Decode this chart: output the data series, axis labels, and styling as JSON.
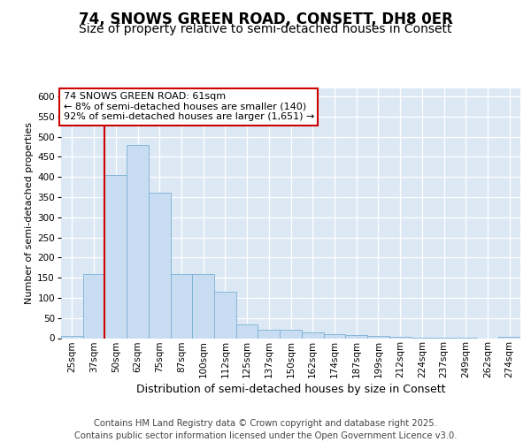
{
  "title": "74, SNOWS GREEN ROAD, CONSETT, DH8 0ER",
  "subtitle": "Size of property relative to semi-detached houses in Consett",
  "xlabel": "Distribution of semi-detached houses by size in Consett",
  "ylabel": "Number of semi-detached properties",
  "categories": [
    "25sqm",
    "37sqm",
    "50sqm",
    "62sqm",
    "75sqm",
    "87sqm",
    "100sqm",
    "112sqm",
    "125sqm",
    "137sqm",
    "150sqm",
    "162sqm",
    "174sqm",
    "187sqm",
    "199sqm",
    "212sqm",
    "224sqm",
    "237sqm",
    "249sqm",
    "262sqm",
    "274sqm"
  ],
  "values": [
    5,
    160,
    405,
    480,
    360,
    160,
    160,
    115,
    35,
    20,
    20,
    15,
    10,
    8,
    5,
    3,
    2,
    1,
    1,
    0,
    3
  ],
  "bar_color": "#c9ddf2",
  "bar_edge_color": "#7bafd4",
  "vline_color": "#cc0000",
  "vline_xidx": 1.5,
  "annotation_text": "74 SNOWS GREEN ROAD: 61sqm\n← 8% of semi-detached houses are smaller (140)\n92% of semi-detached houses are larger (1,651) →",
  "footer": "Contains HM Land Registry data © Crown copyright and database right 2025.\nContains public sector information licensed under the Open Government Licence v3.0.",
  "ylim": [
    0,
    620
  ],
  "yticks": [
    0,
    50,
    100,
    150,
    200,
    250,
    300,
    350,
    400,
    450,
    500,
    550,
    600
  ],
  "fig_bg": "#ffffff",
  "plot_bg": "#dce9f5",
  "title_fontsize": 12,
  "subtitle_fontsize": 10,
  "ylabel_fontsize": 8,
  "xlabel_fontsize": 9,
  "tick_fontsize": 7.5,
  "footer_fontsize": 7.2,
  "annot_fontsize": 8
}
